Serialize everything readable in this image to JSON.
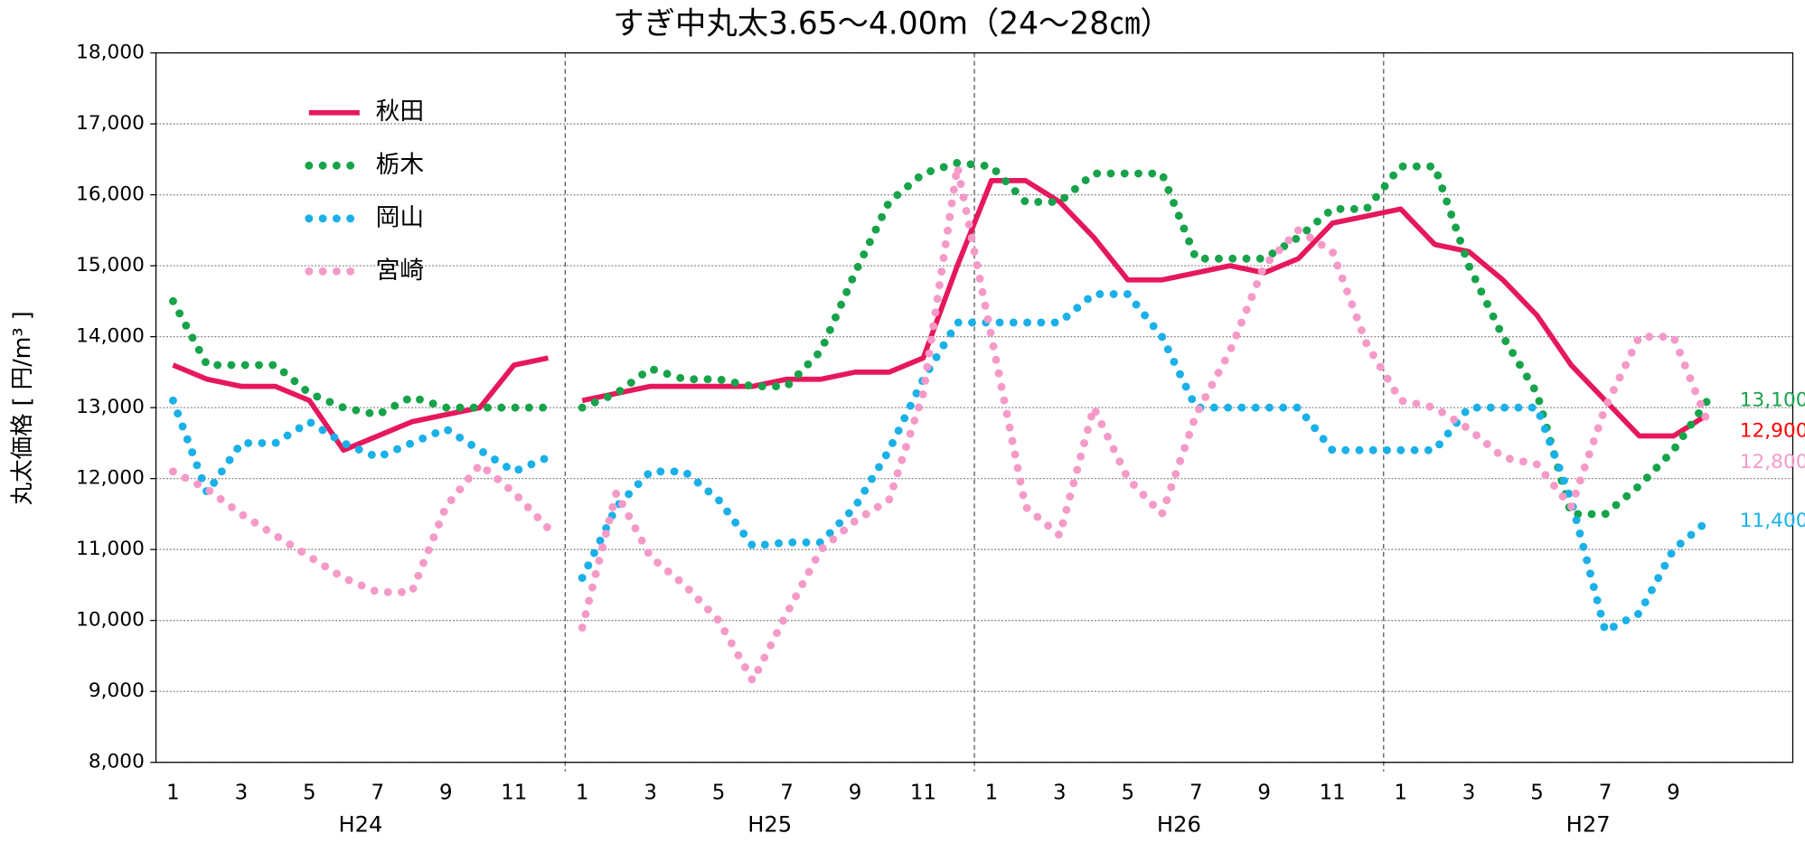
{
  "chart_data": {
    "type": "line",
    "title": "すぎ中丸太3.65～4.00m（24～28㎝）",
    "ylabel": "丸太価格 [ 円/m³ ]",
    "groups": [
      "H24",
      "H25",
      "H26",
      "H27"
    ],
    "categories": [
      "1",
      null,
      "3",
      null,
      "5",
      null,
      "7",
      null,
      "9",
      null,
      "11",
      null,
      "1",
      null,
      "3",
      null,
      "5",
      null,
      "7",
      null,
      "9",
      null,
      "11",
      null,
      "1",
      null,
      "3",
      null,
      "5",
      null,
      "7",
      null,
      "9",
      null,
      "11",
      null,
      "1",
      null,
      "3",
      null,
      "5",
      null,
      "7",
      null,
      "9",
      null,
      null,
      null
    ],
    "line_break_after": [
      11
    ],
    "ylim": [
      8000,
      18000
    ],
    "yticks": [
      {
        "value": 8000,
        "label": "8,000"
      },
      {
        "value": 9000,
        "label": "9,000"
      },
      {
        "value": 10000,
        "label": "10,000"
      },
      {
        "value": 11000,
        "label": "11,000"
      },
      {
        "value": 12000,
        "label": "12,000"
      },
      {
        "value": 13000,
        "label": "13,000"
      },
      {
        "value": 14000,
        "label": "14,000"
      },
      {
        "value": 15000,
        "label": "15,000"
      },
      {
        "value": 16000,
        "label": "16,000"
      },
      {
        "value": 17000,
        "label": "17,000"
      },
      {
        "value": 18000,
        "label": "18,000"
      }
    ],
    "grid": true,
    "legend": "upper left",
    "series": [
      {
        "name": "秋田",
        "color": "#e6185c",
        "style": "solid",
        "values": [
          13600,
          13400,
          13300,
          13300,
          13100,
          12400,
          12600,
          12800,
          12900,
          13000,
          13600,
          13700,
          13100,
          13200,
          13300,
          13300,
          13300,
          13300,
          13400,
          13400,
          13500,
          13500,
          13700,
          15000,
          16200,
          16200,
          15900,
          15400,
          14800,
          14800,
          14900,
          15000,
          14900,
          15100,
          15600,
          15700,
          15800,
          15300,
          15200,
          14800,
          14300,
          13600,
          13100,
          12600,
          12600,
          12900,
          null,
          null
        ],
        "value_labels": [
          null,
          null,
          null,
          null,
          null,
          null,
          null,
          null,
          null,
          null,
          null,
          null,
          null,
          null,
          null,
          null,
          null,
          null,
          null,
          null,
          null,
          null,
          null,
          null,
          null,
          null,
          null,
          null,
          null,
          null,
          null,
          null,
          null,
          null,
          null,
          null,
          null,
          null,
          null,
          null,
          null,
          null,
          null,
          null,
          null,
          "12,900",
          null,
          null
        ],
        "label_color": "#ff0000"
      },
      {
        "name": "栃木",
        "color": "#17a34a",
        "style": "dotted",
        "values": [
          14500,
          13600,
          13600,
          13600,
          13200,
          13000,
          12900,
          13150,
          13000,
          13000,
          13000,
          13000,
          13000,
          13200,
          13550,
          13400,
          13400,
          13300,
          13300,
          13800,
          14900,
          15900,
          16300,
          16450,
          16400,
          15900,
          15900,
          16300,
          16300,
          16300,
          15100,
          15100,
          15100,
          15400,
          15800,
          15800,
          16400,
          16400,
          15000,
          14000,
          13200,
          11500,
          11500,
          11900,
          12400,
          13100,
          null,
          null
        ],
        "value_labels": [
          null,
          null,
          null,
          null,
          null,
          null,
          null,
          null,
          null,
          null,
          null,
          null,
          null,
          null,
          null,
          null,
          null,
          null,
          null,
          null,
          null,
          null,
          null,
          null,
          null,
          null,
          null,
          null,
          null,
          null,
          null,
          null,
          null,
          null,
          null,
          null,
          null,
          null,
          null,
          null,
          null,
          null,
          null,
          null,
          null,
          "13,100",
          null,
          null
        ]
      },
      {
        "name": "岡山",
        "color": "#1ab0e8",
        "style": "dotted",
        "values": [
          13100,
          11800,
          12500,
          12500,
          12800,
          12500,
          12300,
          12500,
          12700,
          12400,
          12100,
          12300,
          10600,
          11600,
          12100,
          12100,
          11700,
          11050,
          11100,
          11100,
          11600,
          12400,
          13400,
          14200,
          14200,
          14200,
          14200,
          14600,
          14600,
          14000,
          13000,
          13000,
          13000,
          13000,
          12400,
          12400,
          12400,
          12400,
          13000,
          13000,
          13000,
          11700,
          9850,
          10100,
          11000,
          11400,
          null,
          null
        ],
        "value_labels": [
          null,
          null,
          null,
          null,
          null,
          null,
          null,
          null,
          null,
          null,
          null,
          null,
          null,
          null,
          null,
          null,
          null,
          null,
          null,
          null,
          null,
          null,
          null,
          null,
          null,
          null,
          null,
          null,
          null,
          null,
          null,
          null,
          null,
          null,
          null,
          null,
          null,
          null,
          null,
          null,
          null,
          null,
          null,
          null,
          null,
          "11,400",
          null,
          null
        ]
      },
      {
        "name": "宮崎",
        "color": "#f59ac8",
        "style": "dotted",
        "values": [
          12100,
          11850,
          11500,
          11200,
          10900,
          10600,
          10400,
          10400,
          11600,
          12200,
          11800,
          11300,
          9900,
          11800,
          10900,
          10500,
          10000,
          9150,
          10100,
          11000,
          11400,
          11700,
          13200,
          16400,
          14000,
          11600,
          11200,
          13000,
          12000,
          11500,
          12900,
          13800,
          15000,
          15500,
          15200,
          13900,
          13100,
          13000,
          12700,
          12300,
          12200,
          11600,
          13000,
          14000,
          14000,
          12800,
          null,
          null
        ],
        "value_labels": [
          null,
          null,
          null,
          null,
          null,
          null,
          null,
          null,
          null,
          null,
          null,
          null,
          null,
          null,
          null,
          null,
          null,
          null,
          null,
          null,
          null,
          null,
          null,
          null,
          null,
          null,
          null,
          null,
          null,
          null,
          null,
          null,
          null,
          null,
          null,
          null,
          null,
          null,
          null,
          null,
          null,
          null,
          null,
          null,
          null,
          "12,800",
          null,
          null
        ]
      }
    ]
  }
}
